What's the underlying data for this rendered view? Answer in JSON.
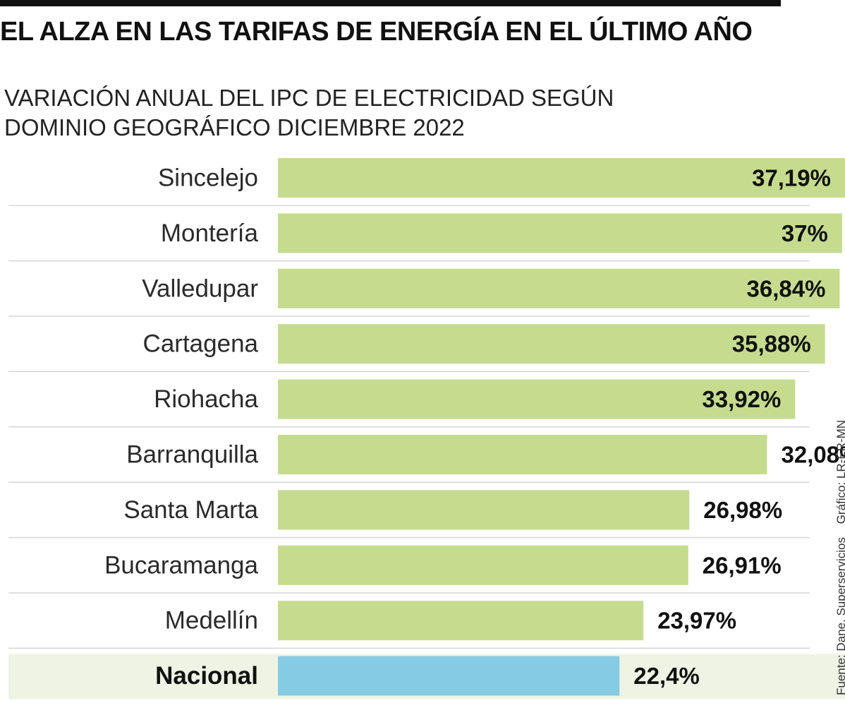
{
  "header": {
    "title": "EL ALZA EN LAS TARIFAS DE ENERGÍA EN EL ÚLTIMO AÑO",
    "subtitle_line1": "VARIACIÓN ANUAL DEL IPC DE ELECTRICIDAD SEGÚN",
    "subtitle_line2": "DOMINIO GEOGRÁFICO DICIEMBRE 2022"
  },
  "credits": {
    "source": "Fuente: Dane, Superservicios",
    "graphic": "Gráfico: LR-ER-MN"
  },
  "colors": {
    "bar": "#c5dc8f",
    "highlight_bar": "#86cbe4",
    "highlight_row": "#eef3e4",
    "separator": "#d6d6d6"
  },
  "chart_data": {
    "type": "bar",
    "orientation": "horizontal",
    "categories": [
      "Sincelejo",
      "Montería",
      "Valledupar",
      "Cartagena",
      "Riohacha",
      "Barranquilla",
      "Santa Marta",
      "Bucaramanga",
      "Medellín",
      "Nacional"
    ],
    "values": [
      37.19,
      37,
      36.84,
      35.88,
      33.92,
      32.08,
      26.98,
      26.91,
      23.97,
      22.4
    ],
    "value_labels": [
      "37,19%",
      "37%",
      "36,84%",
      "35,88%",
      "33,92%",
      "32,08%",
      "26,98%",
      "26,91%",
      "23,97%",
      "22,4%"
    ],
    "highlight": "Nacional",
    "unit": "%",
    "xlim": [
      0,
      37.19
    ]
  }
}
